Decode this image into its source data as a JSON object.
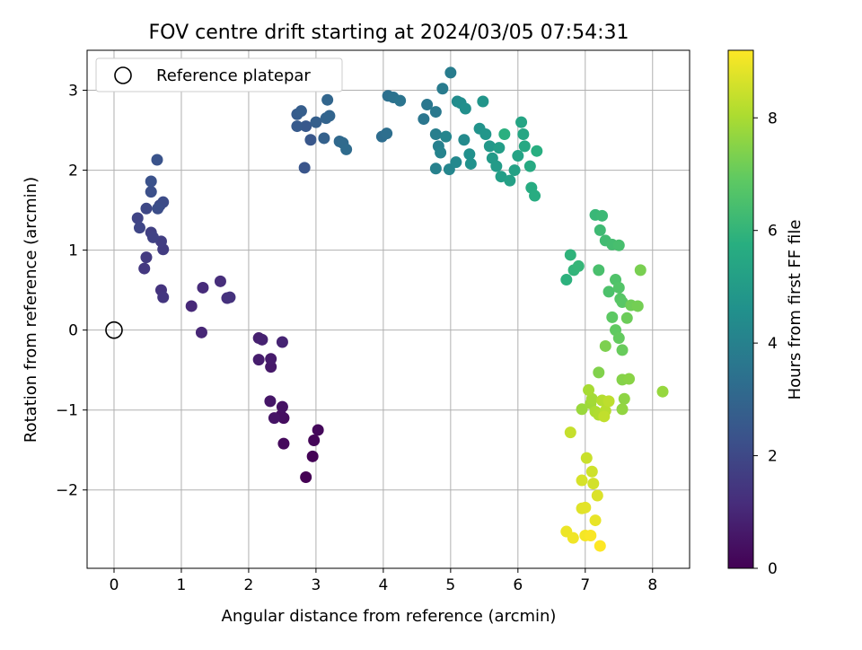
{
  "chart_data": {
    "type": "scatter",
    "title": "FOV centre drift starting at 2024/03/05 07:54:31",
    "xlabel": "Angular distance from reference (arcmin)",
    "ylabel": "Rotation from reference (arcmin)",
    "xlim": [
      -0.4,
      8.55
    ],
    "ylim": [
      -2.98,
      3.5
    ],
    "xticks": [
      "0",
      "1",
      "2",
      "3",
      "4",
      "5",
      "6",
      "7",
      "8"
    ],
    "yticks": [
      "−2",
      "−1",
      "0",
      "1",
      "2",
      "3"
    ],
    "grid": true,
    "legend": {
      "position": "top-left",
      "entries": [
        "Reference platepar"
      ]
    },
    "reference_point": {
      "x": 0,
      "y": 0
    },
    "colorbar": {
      "label": "Hours from first FF file",
      "colormap": "viridis",
      "range": [
        0,
        9.2
      ],
      "ticks": [
        "0",
        "2",
        "4",
        "6",
        "8"
      ]
    },
    "series": [
      {
        "points": [
          [
            2.85,
            -1.84
          ],
          [
            2.95,
            -1.58
          ],
          [
            2.97,
            -1.38
          ],
          [
            3.03,
            -1.25
          ],
          [
            2.52,
            -1.42
          ],
          [
            2.52,
            -1.1
          ],
          [
            2.48,
            -1.07
          ],
          [
            2.5,
            -0.96
          ],
          [
            2.38,
            -1.1
          ],
          [
            2.32,
            -0.89
          ],
          [
            2.33,
            -0.46
          ],
          [
            2.33,
            -0.36
          ],
          [
            2.15,
            -0.37
          ],
          [
            2.15,
            -0.1
          ],
          [
            2.2,
            -0.12
          ],
          [
            2.5,
            -0.15
          ],
          [
            1.3,
            -0.03
          ],
          [
            1.15,
            0.3
          ],
          [
            1.32,
            0.53
          ],
          [
            1.58,
            0.61
          ],
          [
            1.68,
            0.4
          ],
          [
            1.72,
            0.41
          ],
          [
            0.7,
            0.5
          ],
          [
            0.73,
            0.41
          ],
          [
            0.45,
            0.77
          ],
          [
            0.48,
            0.91
          ],
          [
            0.73,
            1.01
          ],
          [
            0.7,
            1.11
          ],
          [
            0.55,
            1.22
          ],
          [
            0.58,
            1.16
          ],
          [
            0.35,
            1.4
          ],
          [
            0.38,
            1.28
          ],
          [
            0.48,
            1.52
          ],
          [
            0.68,
            1.56
          ],
          [
            0.73,
            1.6
          ],
          [
            0.65,
            1.52
          ],
          [
            0.55,
            1.73
          ],
          [
            0.55,
            1.86
          ],
          [
            0.64,
            2.13
          ],
          [
            2.83,
            2.03
          ],
          [
            2.92,
            2.38
          ],
          [
            2.85,
            2.55
          ],
          [
            2.72,
            2.55
          ],
          [
            2.72,
            2.7
          ],
          [
            2.78,
            2.74
          ],
          [
            3.0,
            2.6
          ],
          [
            3.12,
            2.4
          ],
          [
            3.15,
            2.65
          ],
          [
            3.2,
            2.68
          ],
          [
            3.17,
            2.88
          ],
          [
            3.35,
            2.36
          ],
          [
            3.4,
            2.34
          ],
          [
            3.45,
            2.26
          ],
          [
            3.98,
            2.42
          ],
          [
            4.05,
            2.46
          ],
          [
            4.07,
            2.93
          ],
          [
            4.15,
            2.91
          ],
          [
            4.25,
            2.87
          ],
          [
            4.6,
            2.64
          ],
          [
            4.65,
            2.82
          ],
          [
            4.78,
            2.73
          ],
          [
            4.88,
            3.02
          ],
          [
            5.0,
            3.22
          ],
          [
            4.78,
            2.45
          ],
          [
            4.82,
            2.3
          ],
          [
            4.78,
            2.02
          ],
          [
            4.85,
            2.22
          ],
          [
            4.93,
            2.42
          ],
          [
            4.98,
            2.01
          ],
          [
            5.08,
            2.1
          ],
          [
            5.2,
            2.38
          ],
          [
            5.1,
            2.86
          ],
          [
            5.15,
            2.84
          ],
          [
            5.22,
            2.77
          ],
          [
            5.28,
            2.2
          ],
          [
            5.3,
            2.08
          ],
          [
            5.43,
            2.52
          ],
          [
            5.48,
            2.86
          ],
          [
            5.52,
            2.45
          ],
          [
            5.58,
            2.3
          ],
          [
            5.62,
            2.15
          ],
          [
            5.68,
            2.05
          ],
          [
            5.72,
            2.28
          ],
          [
            5.75,
            1.92
          ],
          [
            5.88,
            1.87
          ],
          [
            5.95,
            2.0
          ],
          [
            6.0,
            2.18
          ],
          [
            6.05,
            2.6
          ],
          [
            6.08,
            2.45
          ],
          [
            6.1,
            2.3
          ],
          [
            6.18,
            2.05
          ],
          [
            6.2,
            1.78
          ],
          [
            6.25,
            1.68
          ],
          [
            6.28,
            2.24
          ],
          [
            5.8,
            2.45
          ],
          [
            6.72,
            0.63
          ],
          [
            6.78,
            0.94
          ],
          [
            6.83,
            0.75
          ],
          [
            6.9,
            0.8
          ],
          [
            7.15,
            1.44
          ],
          [
            7.25,
            1.43
          ],
          [
            7.22,
            1.25
          ],
          [
            7.3,
            1.12
          ],
          [
            7.4,
            1.07
          ],
          [
            7.5,
            1.06
          ],
          [
            7.2,
            0.75
          ],
          [
            7.35,
            0.48
          ],
          [
            7.45,
            0.63
          ],
          [
            7.5,
            0.53
          ],
          [
            7.52,
            0.39
          ],
          [
            7.55,
            0.35
          ],
          [
            7.4,
            0.16
          ],
          [
            7.45,
            0.0
          ],
          [
            7.5,
            -0.1
          ],
          [
            7.55,
            -0.25
          ],
          [
            7.62,
            0.15
          ],
          [
            7.68,
            0.31
          ],
          [
            7.78,
            0.3
          ],
          [
            7.82,
            0.75
          ],
          [
            7.3,
            -0.2
          ],
          [
            7.2,
            -0.53
          ],
          [
            7.55,
            -0.62
          ],
          [
            7.65,
            -0.61
          ],
          [
            7.58,
            -0.86
          ],
          [
            7.55,
            -0.99
          ],
          [
            8.15,
            -0.77
          ],
          [
            6.95,
            -0.99
          ],
          [
            7.08,
            -0.92
          ],
          [
            7.1,
            -0.86
          ],
          [
            7.05,
            -0.75
          ],
          [
            7.15,
            -1.02
          ],
          [
            7.2,
            -1.06
          ],
          [
            7.25,
            -0.88
          ],
          [
            7.3,
            -1.01
          ],
          [
            7.35,
            -0.89
          ],
          [
            7.28,
            -1.08
          ],
          [
            6.78,
            -1.28
          ],
          [
            7.02,
            -1.6
          ],
          [
            7.1,
            -1.77
          ],
          [
            7.12,
            -1.92
          ],
          [
            6.95,
            -1.88
          ],
          [
            7.18,
            -2.07
          ],
          [
            6.95,
            -2.23
          ],
          [
            7.0,
            -2.22
          ],
          [
            7.15,
            -2.38
          ],
          [
            6.72,
            -2.52
          ],
          [
            6.82,
            -2.6
          ],
          [
            7.0,
            -2.57
          ],
          [
            7.08,
            -2.57
          ],
          [
            7.22,
            -2.7
          ]
        ]
      }
    ]
  }
}
